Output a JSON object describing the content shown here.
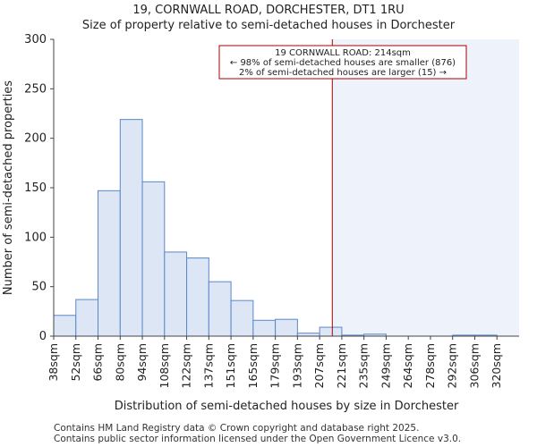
{
  "title_line1": "19, CORNWALL ROAD, DORCHESTER, DT1 1RU",
  "title_line2": "Size of property relative to semi-detached houses in Dorchester",
  "footer_line1": "Contains HM Land Registry data © Crown copyright and database right 2025.",
  "footer_line2": "Contains public sector information licensed under the Open Government Licence v3.0.",
  "colors": {
    "bar_fill": "#dce6f5",
    "bar_edge": "#5a87c8",
    "marker": "#aa0000",
    "highlight": "#eef2fb"
  },
  "chart_data": {
    "type": "bar",
    "title": "Size of property relative to semi-detached houses in Dorchester",
    "xlabel": "Distribution of semi-detached houses by size in Dorchester",
    "ylabel": "Number of semi-detached properties",
    "ylim": [
      0,
      300
    ],
    "yticks": [
      "0",
      "50",
      "100",
      "150",
      "200",
      "250",
      "300"
    ],
    "categories": [
      "38sqm",
      "52sqm",
      "66sqm",
      "80sqm",
      "94sqm",
      "108sqm",
      "122sqm",
      "137sqm",
      "151sqm",
      "165sqm",
      "179sqm",
      "193sqm",
      "207sqm",
      "221sqm",
      "235sqm",
      "249sqm",
      "264sqm",
      "278sqm",
      "292sqm",
      "306sqm",
      "320sqm"
    ],
    "values": [
      21,
      37,
      147,
      219,
      156,
      85,
      79,
      55,
      36,
      16,
      17,
      3,
      9,
      1,
      2,
      0,
      0,
      0,
      1,
      1,
      0
    ],
    "marker_value_sqm": 214,
    "annotation": {
      "line1": "19 CORNWALL ROAD: 214sqm",
      "line2": "← 98% of semi-detached houses are smaller (876)",
      "line3": "2% of semi-detached houses are larger (15) →"
    }
  }
}
